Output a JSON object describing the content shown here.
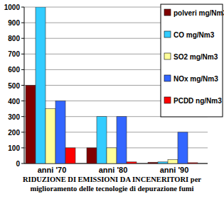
{
  "chart_data": {
    "type": "bar",
    "title": "RIDUZIONE DI EMISSIONI DA INCENERITORI per miglioramento delle tecnologie di depurazione fumi",
    "categories": [
      "anni '70",
      "anni '80",
      "anni '90"
    ],
    "series": [
      {
        "name": "polveri mg/Nm3",
        "color": "#800000",
        "values": [
          500,
          100,
          8
        ]
      },
      {
        "name": "CO mg/Nm3",
        "color": "#33ccff",
        "values": [
          1000,
          300,
          10
        ]
      },
      {
        "name": "SO2 mg/Nm3",
        "color": "#ffff99",
        "values": [
          350,
          100,
          25
        ]
      },
      {
        "name": "NOx mg/Nm3",
        "color": "#3366ff",
        "values": [
          400,
          300,
          200
        ]
      },
      {
        "name": "PCDD ng/Nm3",
        "color": "#ff0000",
        "values": [
          100,
          10,
          5
        ]
      }
    ],
    "ylim": [
      0,
      1000
    ],
    "yticks": [
      0,
      100,
      200,
      300,
      400,
      500,
      600,
      700,
      800,
      900,
      1000
    ],
    "grid": true,
    "legend": "top-right"
  }
}
